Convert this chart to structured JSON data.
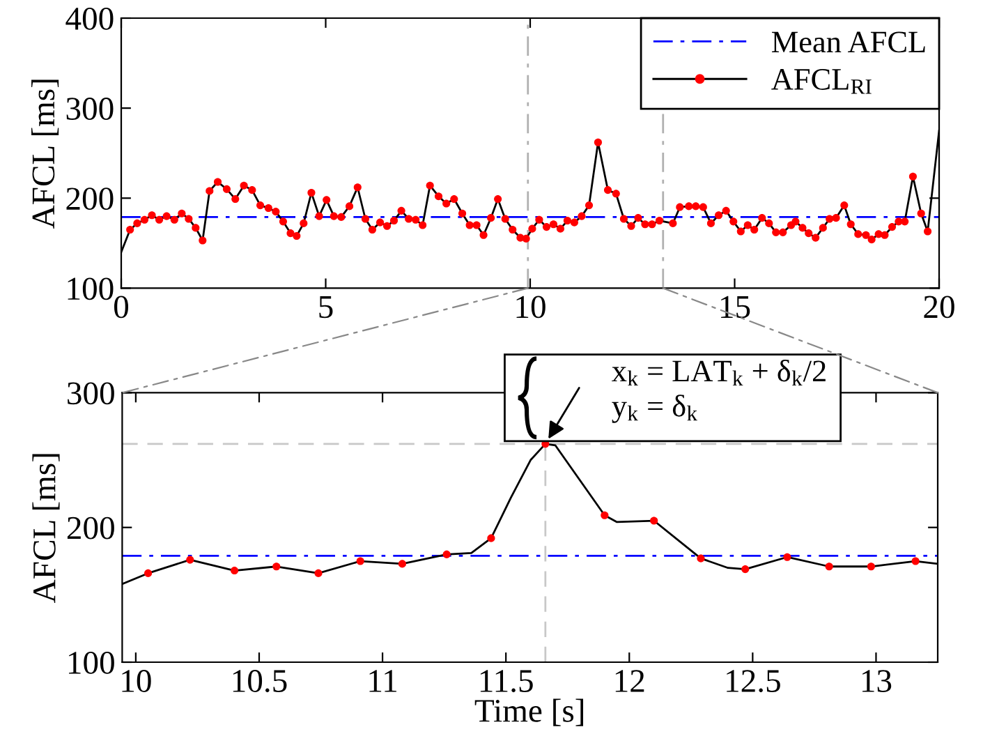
{
  "chart_data": [
    {
      "type": "line",
      "ylabel": "AFCL [ms]",
      "xlim": [
        0,
        20
      ],
      "ylim": [
        100,
        400
      ],
      "xticks": [
        0,
        5,
        10,
        15,
        20
      ],
      "yticks": [
        100,
        200,
        300,
        400
      ],
      "grid": false,
      "legend": "top right",
      "series": [
        {
          "name": "AFCL$_{RI}$",
          "type": "line",
          "color": "#000000",
          "marker": "none",
          "x": [
            0,
            0.216,
            0.39,
            0.57,
            0.75,
            0.93,
            1.11,
            1.3,
            1.48,
            1.65,
            1.82,
            1.99,
            2.16,
            2.36,
            2.58,
            2.79,
            3.0,
            3.2,
            3.4,
            3.6,
            3.78,
            3.96,
            4.14,
            4.29,
            4.46,
            4.65,
            4.84,
            5.02,
            5.2,
            5.38,
            5.58,
            5.78,
            5.97,
            6.14,
            6.33,
            6.5,
            6.67,
            6.85,
            7.03,
            7.2,
            7.37,
            7.55,
            7.76,
            7.95,
            8.14,
            8.34,
            8.52,
            8.69,
            8.86,
            9.04,
            9.21,
            9.39,
            9.57,
            9.76,
            9.9,
            10.05,
            10.22,
            10.4,
            10.57,
            10.74,
            10.91,
            11.08,
            11.26,
            11.44,
            11.66,
            11.9,
            12.1,
            12.29,
            12.47,
            12.64,
            12.81,
            12.98,
            13.16,
            13.49,
            13.66,
            13.88,
            14.05,
            14.23,
            14.42,
            14.61,
            14.79,
            14.97,
            15.15,
            15.32,
            15.48,
            15.67,
            15.84,
            16.01,
            16.18,
            16.38,
            16.49,
            16.66,
            16.81,
            16.98,
            17.16,
            17.32,
            17.48,
            17.68,
            17.84,
            18.02,
            18.21,
            18.35,
            18.52,
            18.67,
            18.85,
            19.01,
            19.16,
            19.36,
            19.56,
            19.72,
            20
          ],
          "values": [
            140,
            165,
            172,
            176,
            181,
            176,
            180,
            176,
            183,
            177,
            167,
            153,
            208,
            218,
            210,
            199,
            214,
            209,
            192,
            189,
            185,
            174,
            161,
            158,
            172,
            206,
            180,
            198,
            180,
            179,
            191,
            212,
            177,
            165,
            173,
            169,
            175,
            186,
            177,
            176,
            170,
            214,
            202,
            194,
            199,
            183,
            170,
            170,
            159,
            178,
            199,
            177,
            165,
            156,
            155,
            166,
            176,
            168,
            171,
            166,
            175,
            173,
            180,
            192,
            262,
            209,
            205,
            177,
            169,
            178,
            171,
            171,
            175,
            172,
            190,
            191,
            191,
            190,
            172,
            181,
            186,
            174,
            163,
            170,
            165,
            178,
            172,
            162,
            162,
            170,
            174,
            167,
            161,
            156,
            167,
            177,
            178,
            192,
            171,
            160,
            159,
            154,
            160,
            159,
            168,
            174,
            174,
            224,
            183,
            163,
            275
          ]
        },
        {
          "type": "scatter",
          "color": "#ff0000",
          "marker": "circle",
          "x": [
            0.216,
            0.39,
            0.57,
            0.75,
            0.93,
            1.11,
            1.3,
            1.48,
            1.65,
            1.82,
            1.99,
            2.16,
            2.36,
            2.58,
            2.79,
            3.0,
            3.2,
            3.4,
            3.6,
            3.78,
            3.96,
            4.14,
            4.29,
            4.46,
            4.65,
            4.84,
            5.02,
            5.2,
            5.38,
            5.58,
            5.78,
            5.97,
            6.14,
            6.33,
            6.5,
            6.67,
            6.85,
            7.03,
            7.2,
            7.37,
            7.55,
            7.76,
            7.95,
            8.14,
            8.34,
            8.52,
            8.69,
            8.86,
            9.04,
            9.21,
            9.39,
            9.57,
            9.76,
            9.9,
            10.05,
            10.22,
            10.4,
            10.57,
            10.74,
            10.91,
            11.08,
            11.26,
            11.44,
            11.66,
            11.9,
            12.1,
            12.29,
            12.47,
            12.64,
            12.81,
            12.98,
            13.16,
            13.49,
            13.66,
            13.88,
            14.05,
            14.23,
            14.42,
            14.61,
            14.79,
            14.97,
            15.15,
            15.32,
            15.48,
            15.67,
            15.84,
            16.01,
            16.18,
            16.38,
            16.49,
            16.66,
            16.81,
            16.98,
            17.16,
            17.32,
            17.48,
            17.68,
            17.84,
            18.02,
            18.21,
            18.35,
            18.52,
            18.67,
            18.85,
            19.01,
            19.16,
            19.36,
            19.56,
            19.72
          ],
          "values": [
            165,
            172,
            176,
            181,
            176,
            180,
            176,
            183,
            177,
            167,
            153,
            208,
            218,
            210,
            199,
            214,
            209,
            192,
            189,
            185,
            174,
            161,
            158,
            172,
            206,
            180,
            198,
            180,
            179,
            191,
            212,
            177,
            165,
            173,
            169,
            175,
            186,
            177,
            176,
            170,
            214,
            202,
            194,
            199,
            183,
            170,
            170,
            159,
            178,
            199,
            177,
            165,
            156,
            155,
            166,
            176,
            168,
            171,
            166,
            175,
            173,
            180,
            192,
            262,
            209,
            205,
            177,
            169,
            178,
            171,
            171,
            175,
            172,
            190,
            191,
            191,
            190,
            172,
            181,
            186,
            174,
            163,
            170,
            165,
            178,
            172,
            162,
            162,
            170,
            174,
            167,
            161,
            156,
            167,
            177,
            178,
            192,
            171,
            160,
            159,
            154,
            160,
            159,
            168,
            174,
            174,
            224,
            183,
            163
          ]
        }
      ],
      "ref_lines": [
        {
          "axis": "y",
          "value": 179,
          "label": "Mean AFCL",
          "color": "#0000ff",
          "line_style": "dashdot"
        },
        {
          "axis": "x",
          "value": 9.945,
          "color": "#b0b0b0",
          "line_style": "dashdot"
        },
        {
          "axis": "x",
          "value": 13.25,
          "color": "#b0b0b0",
          "line_style": "dashdot"
        }
      ]
    },
    {
      "type": "line",
      "xlabel": "Time [s]",
      "ylabel": "AFCL [ms]",
      "xlim": [
        9.945,
        13.25
      ],
      "ylim": [
        100,
        300
      ],
      "xticks": [
        10,
        10.5,
        11,
        11.5,
        12,
        12.5,
        13
      ],
      "yticks": [
        100,
        200,
        300
      ],
      "grid": false,
      "series": [
        {
          "type": "line",
          "color": "#000000",
          "marker": "none",
          "x": [
            9.945,
            10.05,
            10.22,
            10.4,
            10.57,
            10.74,
            10.91,
            11.08,
            11.26,
            11.36,
            11.44,
            11.52,
            11.6,
            11.66,
            11.7,
            11.8,
            11.9,
            11.95,
            12.1,
            12.29,
            12.4,
            12.47,
            12.64,
            12.81,
            12.98,
            13.16,
            13.25
          ],
          "values": [
            158,
            166,
            176,
            168,
            171,
            166,
            175,
            173,
            180,
            181,
            192,
            222,
            250,
            262,
            261,
            235,
            209,
            204,
            205,
            177,
            170,
            169,
            178,
            171,
            171,
            175,
            173
          ]
        },
        {
          "type": "scatter",
          "color": "#ff0000",
          "marker": "circle",
          "x": [
            10.05,
            10.22,
            10.4,
            10.57,
            10.74,
            10.91,
            11.08,
            11.26,
            11.44,
            11.66,
            11.9,
            12.1,
            12.29,
            12.47,
            12.64,
            12.81,
            12.98,
            13.16
          ],
          "values": [
            166,
            176,
            168,
            171,
            166,
            175,
            173,
            180,
            192,
            262,
            209,
            205,
            177,
            169,
            178,
            171,
            171,
            175
          ]
        }
      ],
      "ref_lines": [
        {
          "axis": "y",
          "value": 179,
          "color": "#0000ff",
          "line_style": "dashdot"
        },
        {
          "axis": "y",
          "value": 262,
          "color": "#c8c8c8",
          "line_style": "dashed"
        },
        {
          "axis": "x",
          "value": 11.66,
          "color": "#c8c8c8",
          "line_style": "dashed"
        }
      ],
      "annotations": [
        {
          "text": "x$_{k}$ = LAT$_{k}$ + δ$_{k}$/2",
          "x": 11.66,
          "y": 262
        },
        "y$_{k}$ = δ$_{k}$"
      ]
    }
  ]
}
